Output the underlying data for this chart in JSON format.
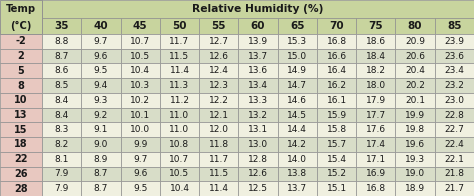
{
  "title_left": "Temp",
  "title_left2": "(°C)",
  "title_right": "Relative Humidity (%)",
  "col_headers": [
    "35",
    "40",
    "45",
    "50",
    "55",
    "60",
    "65",
    "70",
    "75",
    "80",
    "85"
  ],
  "row_headers": [
    "-2",
    "2",
    "5",
    "8",
    "10",
    "13",
    "15",
    "18",
    "22",
    "26",
    "28"
  ],
  "table_data": [
    [
      8.8,
      9.7,
      10.7,
      11.7,
      12.7,
      13.9,
      15.3,
      16.8,
      18.6,
      20.9,
      23.9
    ],
    [
      8.7,
      9.6,
      10.5,
      11.5,
      12.6,
      13.7,
      15.0,
      16.6,
      18.4,
      20.6,
      23.6
    ],
    [
      8.6,
      9.5,
      10.4,
      11.4,
      12.4,
      13.6,
      14.9,
      16.4,
      18.2,
      20.4,
      23.4
    ],
    [
      8.5,
      9.4,
      10.3,
      11.3,
      12.3,
      13.4,
      14.7,
      16.2,
      18.0,
      20.2,
      23.2
    ],
    [
      8.4,
      9.3,
      10.2,
      11.2,
      12.2,
      13.3,
      14.6,
      16.1,
      17.9,
      20.1,
      23.0
    ],
    [
      8.4,
      9.2,
      10.1,
      11.0,
      12.1,
      13.2,
      14.5,
      15.9,
      17.7,
      19.9,
      22.8
    ],
    [
      8.3,
      9.1,
      10.0,
      11.0,
      12.0,
      13.1,
      14.4,
      15.8,
      17.6,
      19.8,
      22.7
    ],
    [
      8.2,
      9.0,
      9.9,
      10.8,
      11.8,
      13.0,
      14.2,
      15.7,
      17.4,
      19.6,
      22.4
    ],
    [
      8.1,
      8.9,
      9.7,
      10.7,
      11.7,
      12.8,
      14.0,
      15.4,
      17.1,
      19.3,
      22.1
    ],
    [
      7.9,
      8.7,
      9.6,
      10.5,
      11.5,
      12.6,
      13.8,
      15.2,
      16.9,
      19.0,
      21.8
    ],
    [
      7.9,
      8.7,
      9.5,
      10.4,
      11.4,
      12.5,
      13.7,
      15.1,
      16.8,
      18.9,
      21.7
    ]
  ],
  "header_bg": "#c8d49e",
  "row_header_bg": "#e8c8c0",
  "even_row_bg": "#f0f0e0",
  "odd_row_bg": "#d8ddc8",
  "header_text_color": "#1a1a1a",
  "border_color": "#909090",
  "data_text_color": "#1a1a1a",
  "font_size": 6.5,
  "header_font_size": 7.2,
  "col_header_font_size": 7.5
}
